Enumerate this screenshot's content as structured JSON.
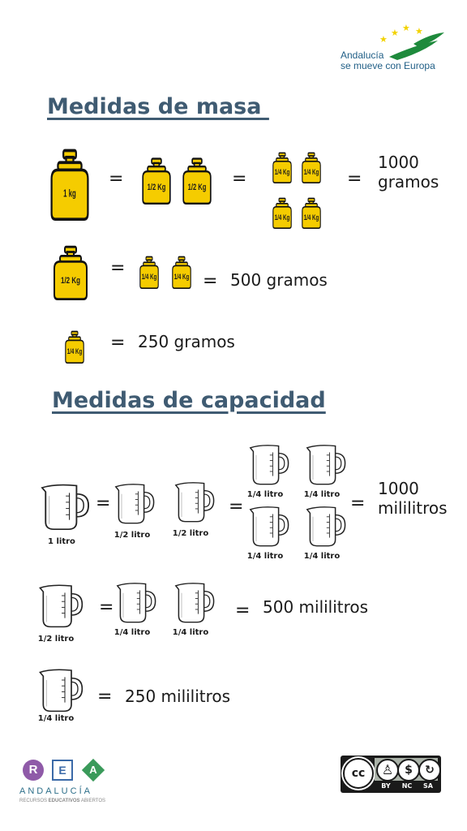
{
  "logo_top": {
    "line1": "Andalucía",
    "line2": "se mueve con Europa"
  },
  "mass": {
    "title": "Medidas de masa ",
    "weights": {
      "kg1": "1 kg",
      "half": "1/2 Kg",
      "quarter": "1/4 Kg"
    },
    "row1_value_1": "1000",
    "row1_value_2": "gramos",
    "row2_value": "500 gramos",
    "row3_value": "250 gramos",
    "equals": "="
  },
  "capacity": {
    "title": "Medidas de capacidad",
    "labels": {
      "one_liter": "1 litro",
      "half_liter": "1/2 litro",
      "quarter_liter": "1/4 litro"
    },
    "row1_value_1": "1000",
    "row1_value_2": "mililitros",
    "row2_value": "500 mililitros",
    "row3_value": "250 mililitros"
  },
  "footer": {
    "rea": {
      "r": "R",
      "e": "E",
      "a": "A",
      "region": "ANDALUCÍA",
      "sub_1": "RECURSOS ",
      "sub_2": "EDUCATIVOS",
      "sub_3": " ABIERTOS"
    },
    "license": {
      "cc": "cc",
      "by": "BY",
      "nc": "NC",
      "sa": "SA"
    }
  },
  "colors": {
    "weight_yellow": "#f5cc00",
    "heading": "#3f5b72",
    "water": "#5fb4e6",
    "rea_purple": "#8f5aa8",
    "rea_green": "#3a9a5a"
  },
  "icons": [
    "weight-icon",
    "measuring-jug-icon",
    "eu-stars-icon",
    "creative-commons-icon",
    "person-icon",
    "no-dollar-icon",
    "share-alike-icon"
  ]
}
